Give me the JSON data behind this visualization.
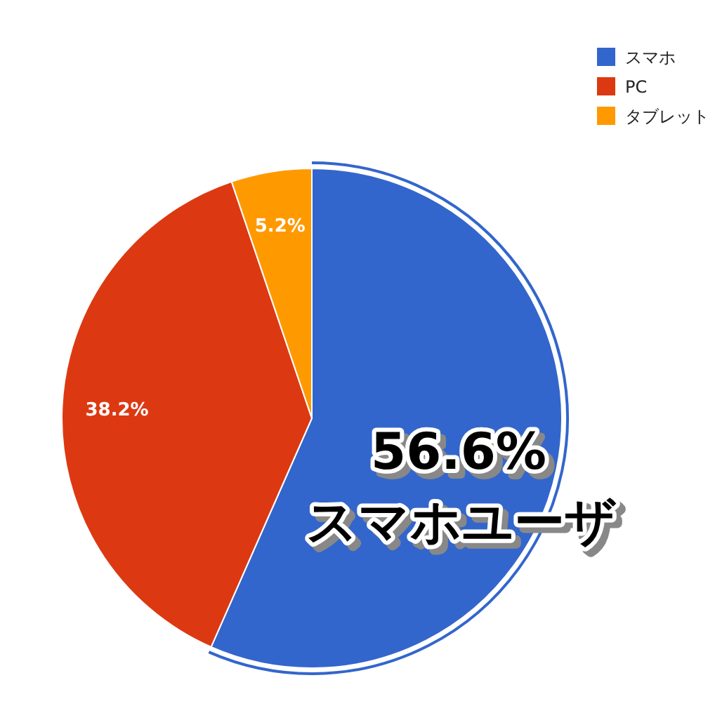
{
  "chart_data": {
    "type": "pie",
    "categories": [
      "スマホ",
      "PC",
      "タブレット"
    ],
    "values": [
      56.6,
      38.2,
      5.2
    ],
    "colors": [
      "#3366cc",
      "#dc3912",
      "#ff9900"
    ],
    "value_labels": [
      "56.6%",
      "38.2%",
      "5.2%"
    ],
    "annotations": [
      "スマホユーザ"
    ],
    "legend": "top right"
  }
}
